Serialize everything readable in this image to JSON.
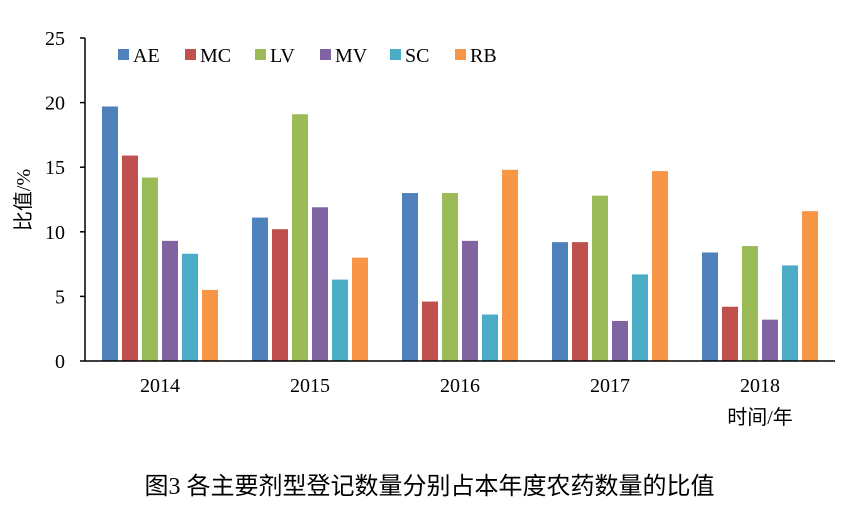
{
  "chart_data": {
    "type": "bar",
    "categories": [
      "2014",
      "2015",
      "2016",
      "2017",
      "2018"
    ],
    "series": [
      {
        "name": "AE",
        "color": "#4f81bd",
        "values": [
          19.7,
          11.1,
          13.0,
          9.2,
          8.4
        ]
      },
      {
        "name": "MC",
        "color": "#c0504d",
        "values": [
          15.9,
          10.2,
          4.6,
          9.2,
          4.2
        ]
      },
      {
        "name": "LV",
        "color": "#9bbb59",
        "values": [
          14.2,
          19.1,
          13.0,
          12.8,
          8.9
        ]
      },
      {
        "name": "MV",
        "color": "#8064a2",
        "values": [
          9.3,
          11.9,
          9.3,
          3.1,
          3.2
        ]
      },
      {
        "name": "SC",
        "color": "#4bacc6",
        "values": [
          8.3,
          6.3,
          3.6,
          6.7,
          7.4
        ]
      },
      {
        "name": "RB",
        "color": "#f79646",
        "values": [
          5.5,
          8.0,
          14.8,
          14.7,
          11.6
        ]
      }
    ],
    "ylabel": "比值/%",
    "xlabel": "时间/年",
    "ylim": [
      0,
      25
    ],
    "yticks": [
      "0",
      "5",
      "10",
      "15",
      "20",
      "25"
    ],
    "grid": false,
    "legend": "top"
  },
  "caption": "图3 各主要剂型登记数量分别占本年度农药数量的比值"
}
